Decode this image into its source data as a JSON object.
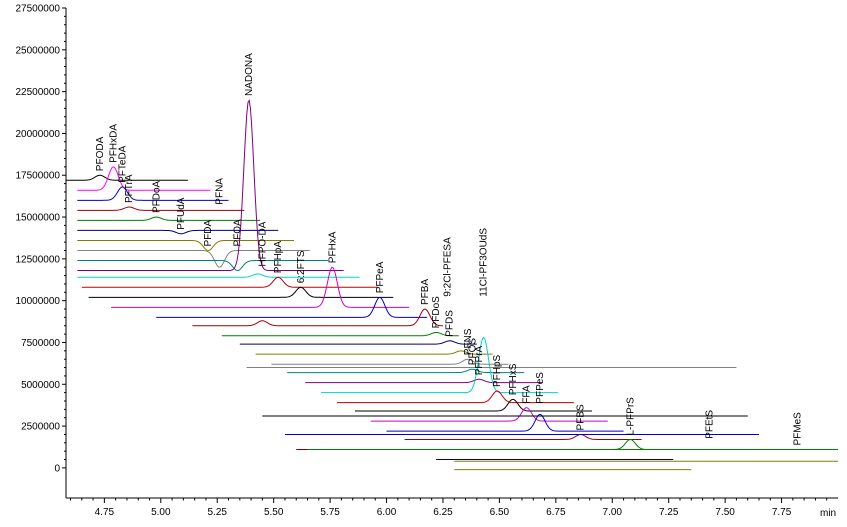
{
  "chart_data": {
    "type": "line",
    "title": "",
    "xlabel": "",
    "ylabel": "",
    "x_unit": "min",
    "xlim": [
      4.58,
      8.0
    ],
    "ylim": [
      -1800000,
      27500000
    ],
    "x_ticks": [
      "4.75",
      "5.00",
      "5.25",
      "5.50",
      "5.75",
      "6.00",
      "6.25",
      "6.50",
      "6.75",
      "7.00",
      "7.25",
      "7.50",
      "7.75"
    ],
    "y_ticks": [
      "0",
      "2500000",
      "5000000",
      "7500000",
      "10000000",
      "12500000",
      "15000000",
      "17500000",
      "20000000",
      "22500000",
      "25000000",
      "27500000"
    ],
    "grid": false,
    "legend": "none",
    "series": [
      {
        "name": "PFODA",
        "color": "#000000",
        "x_start": 4.58,
        "x_end": 5.12,
        "baseline": 17200000,
        "peaks": [
          {
            "rt": 4.73,
            "height": 17500000
          }
        ]
      },
      {
        "name": "PFHxDA",
        "color": "#ff00ff",
        "x_start": 4.63,
        "x_end": 5.22,
        "baseline": 16600000,
        "peaks": [
          {
            "rt": 4.79,
            "height": 18000000
          }
        ]
      },
      {
        "name": "PFTeDA",
        "color": "#0000cd",
        "x_start": 4.63,
        "x_end": 5.3,
        "baseline": 16000000,
        "peaks": [
          {
            "rt": 4.83,
            "height": 16800000
          }
        ]
      },
      {
        "name": "PFTrA",
        "color": "#a00000",
        "x_start": 4.63,
        "x_end": 5.37,
        "baseline": 15400000,
        "peaks": [
          {
            "rt": 4.86,
            "height": 15600000
          }
        ]
      },
      {
        "name": "PFDoA",
        "color": "#008000",
        "x_start": 4.63,
        "x_end": 5.44,
        "baseline": 14800000,
        "peaks": [
          {
            "rt": 4.98,
            "height": 15000000
          }
        ]
      },
      {
        "name": "PFUdA",
        "color": "#000080",
        "x_start": 4.63,
        "x_end": 5.52,
        "baseline": 14200000,
        "peaks": [
          {
            "rt": 5.09,
            "height": 14000000
          }
        ]
      },
      {
        "name": "PFDA",
        "color": "#808000",
        "x_start": 4.63,
        "x_end": 5.59,
        "baseline": 13600000,
        "peaks": [
          {
            "rt": 5.21,
            "height": 13000000
          }
        ]
      },
      {
        "name": "PFNA",
        "color": "#808080",
        "x_start": 4.63,
        "x_end": 5.66,
        "baseline": 13000000,
        "peaks": [
          {
            "rt": 5.26,
            "height": 12000000
          }
        ]
      },
      {
        "name": "PFOA",
        "color": "#008080",
        "x_start": 4.63,
        "x_end": 5.74,
        "baseline": 12400000,
        "peaks": [
          {
            "rt": 5.34,
            "height": 11800000
          }
        ]
      },
      {
        "name": "NADONA",
        "color": "#800080",
        "x_start": 4.63,
        "x_end": 5.81,
        "baseline": 11800000,
        "peaks": [
          {
            "rt": 5.39,
            "height": 22000000
          }
        ]
      },
      {
        "name": "HFPO-DA",
        "color": "#00d0d0",
        "x_start": 4.63,
        "x_end": 5.88,
        "baseline": 11400000,
        "peaks": [
          {
            "rt": 5.43,
            "height": 11600000
          }
        ]
      },
      {
        "name": "PFHpA",
        "color": "#c00000",
        "x_start": 4.65,
        "x_end": 5.96,
        "baseline": 10800000,
        "peaks": [
          {
            "rt": 5.52,
            "height": 11400000
          }
        ]
      },
      {
        "name": "6:2FTS",
        "color": "#000000",
        "x_start": 4.68,
        "x_end": 6.03,
        "baseline": 10200000,
        "peaks": [
          {
            "rt": 5.62,
            "height": 10800000
          }
        ]
      },
      {
        "name": "PFHxA",
        "color": "#cc00cc",
        "x_start": 4.78,
        "x_end": 6.1,
        "baseline": 9600000,
        "peaks": [
          {
            "rt": 5.76,
            "height": 12000000
          }
        ]
      },
      {
        "name": "PFPeA",
        "color": "#0000cd",
        "x_start": 4.98,
        "x_end": 6.18,
        "baseline": 9000000,
        "peaks": [
          {
            "rt": 5.97,
            "height": 10200000
          }
        ]
      },
      {
        "name": "PFBA",
        "color": "#a00000",
        "x_start": 5.14,
        "x_end": 6.25,
        "baseline": 8500000,
        "peaks": [
          {
            "rt": 6.17,
            "height": 9500000
          },
          {
            "rt": 5.45,
            "height": 8800000
          }
        ]
      },
      {
        "name": "PFDoS",
        "color": "#008000",
        "x_start": 5.27,
        "x_end": 6.32,
        "baseline": 7900000,
        "peaks": [
          {
            "rt": 6.22,
            "height": 8100000
          }
        ]
      },
      {
        "name": "PFDS",
        "color": "#000080",
        "x_start": 5.35,
        "x_end": 6.4,
        "baseline": 7400000,
        "peaks": [
          {
            "rt": 6.28,
            "height": 7600000
          }
        ]
      },
      {
        "name": "9:2Cl-PFESA",
        "color": "#808000",
        "x_start": 5.42,
        "x_end": 6.47,
        "baseline": 6800000,
        "peaks": [
          {
            "rt": 6.33,
            "height": 7000000
          }
        ]
      },
      {
        "name": "PFNS",
        "color": "#808080",
        "x_start": 5.49,
        "x_end": 6.54,
        "baseline": 6200000,
        "peaks": [
          {
            "rt": 6.36,
            "height": 6500000
          }
        ]
      },
      {
        "name": "PFOS",
        "color": "#008080",
        "x_start": 5.56,
        "x_end": 6.61,
        "baseline": 5700000,
        "peaks": [
          {
            "rt": 6.38,
            "height": 5900000
          }
        ]
      },
      {
        "name": "PFPrA",
        "color": "#800080",
        "x_start": 5.64,
        "x_end": 6.69,
        "baseline": 5100000,
        "peaks": [
          {
            "rt": 6.41,
            "height": 5300000
          }
        ]
      },
      {
        "name": "11Cl-PF3OUdS",
        "color": "#00d0d0",
        "x_start": 5.71,
        "x_end": 6.76,
        "baseline": 4500000,
        "peaks": [
          {
            "rt": 6.43,
            "height": 7800000
          }
        ]
      },
      {
        "name": "PFHpS",
        "color": "#c00000",
        "x_start": 5.78,
        "x_end": 6.83,
        "baseline": 3900000,
        "peaks": [
          {
            "rt": 6.49,
            "height": 4600000
          }
        ]
      },
      {
        "name": "PFHxS",
        "color": "#000000",
        "x_start": 5.86,
        "x_end": 6.91,
        "baseline": 3400000,
        "peaks": [
          {
            "rt": 6.56,
            "height": 4100000
          }
        ]
      },
      {
        "name": "PFPeS",
        "color": "#cc00cc",
        "x_start": 5.93,
        "x_end": 6.98,
        "baseline": 2800000,
        "peaks": [
          {
            "rt": 6.62,
            "height": 3600000
          }
        ]
      },
      {
        "name": "FFA",
        "color": "#0000cd",
        "x_start": 6.0,
        "x_end": 7.05,
        "baseline": 2200000,
        "peaks": [
          {
            "rt": 6.68,
            "height": 3200000
          }
        ]
      },
      {
        "name": "PFBS",
        "color": "#a00000",
        "x_start": 6.08,
        "x_end": 7.13,
        "baseline": 1700000,
        "peaks": [
          {
            "rt": 6.86,
            "height": 2000000
          }
        ]
      },
      {
        "name": "L-PFPrS",
        "color": "#008000",
        "x_start": 6.15,
        "x_end": 7.2,
        "baseline": 1100000,
        "peaks": [
          {
            "rt": 7.08,
            "height": 1700000
          }
        ]
      },
      {
        "name": "PFEtS",
        "color": "#000080",
        "x_start": 6.22,
        "x_end": 7.27,
        "baseline": 500000,
        "peaks": [
          {
            "rt": 7.43,
            "height": 1500000
          }
        ]
      },
      {
        "name": "PFMeS",
        "color": "#808000",
        "x_start": 6.3,
        "x_end": 7.35,
        "baseline": -100000,
        "peaks": [
          {
            "rt": 7.82,
            "height": 1100000
          }
        ]
      }
    ],
    "extra_lines": [
      {
        "color": "#808080",
        "x_start": 5.38,
        "x_end": 7.55,
        "y": 6000000
      },
      {
        "color": "#000000",
        "x_start": 5.45,
        "x_end": 7.6,
        "y": 3100000
      },
      {
        "color": "#0000cd",
        "x_start": 5.55,
        "x_end": 7.65,
        "y": 2000000
      },
      {
        "color": "#800000",
        "x_start": 5.6,
        "x_end": 7.8,
        "y": 1100000
      },
      {
        "color": "#008000",
        "x_start": 5.65,
        "x_end": 8.0,
        "y": 1100000
      },
      {
        "color": "#808000",
        "x_start": 6.3,
        "x_end": 8.0,
        "y": 400000
      }
    ],
    "peak_labels": [
      {
        "text": "PFODA",
        "x": 4.73,
        "y": 17500000
      },
      {
        "text": "PFHxDA",
        "x": 4.79,
        "y": 18000000
      },
      {
        "text": "PFTeDA",
        "x": 4.83,
        "y": 16800000
      },
      {
        "text": "PFTrA",
        "x": 4.86,
        "y": 15600000
      },
      {
        "text": "PFDoA",
        "x": 4.98,
        "y": 15000000
      },
      {
        "text": "PFUdA",
        "x": 5.09,
        "y": 14000000
      },
      {
        "text": "PFDA",
        "x": 5.21,
        "y": 13000000
      },
      {
        "text": "PFNA",
        "x": 5.26,
        "y": 15500000
      },
      {
        "text": "PFOA",
        "x": 5.34,
        "y": 13000000
      },
      {
        "text": "NADONA",
        "x": 5.39,
        "y": 22000000
      },
      {
        "text": "HFPO-DA",
        "x": 5.45,
        "y": 11800000
      },
      {
        "text": "PFHpA",
        "x": 5.52,
        "y": 11400000
      },
      {
        "text": "6:2FTS",
        "x": 5.62,
        "y": 10800000
      },
      {
        "text": "PFHxA",
        "x": 5.76,
        "y": 12000000
      },
      {
        "text": "PFPeA",
        "x": 5.97,
        "y": 10200000
      },
      {
        "text": "PFBA",
        "x": 6.17,
        "y": 9500000
      },
      {
        "text": "9:2Cl-PFESA",
        "x": 6.27,
        "y": 10000000
      },
      {
        "text": "PFDoS",
        "x": 6.22,
        "y": 8100000
      },
      {
        "text": "PFDS",
        "x": 6.28,
        "y": 7600000
      },
      {
        "text": "PFNS",
        "x": 6.36,
        "y": 6500000
      },
      {
        "text": "PFOS",
        "x": 6.38,
        "y": 5900000
      },
      {
        "text": "PFPrA",
        "x": 6.41,
        "y": 5300000
      },
      {
        "text": "11Cl-PF3OUdS",
        "x": 6.43,
        "y": 10000000
      },
      {
        "text": "PFHpS",
        "x": 6.49,
        "y": 4600000
      },
      {
        "text": "PFHxS",
        "x": 6.56,
        "y": 4100000
      },
      {
        "text": "FFA",
        "x": 6.62,
        "y": 3600000
      },
      {
        "text": "PFPeS",
        "x": 6.68,
        "y": 3600000
      },
      {
        "text": "PFBS",
        "x": 6.86,
        "y": 2000000
      },
      {
        "text": "L-PFPrS",
        "x": 7.08,
        "y": 1700000
      },
      {
        "text": "PFEtS",
        "x": 7.43,
        "y": 1500000
      },
      {
        "text": "PFMeS",
        "x": 7.82,
        "y": 1100000
      }
    ]
  }
}
